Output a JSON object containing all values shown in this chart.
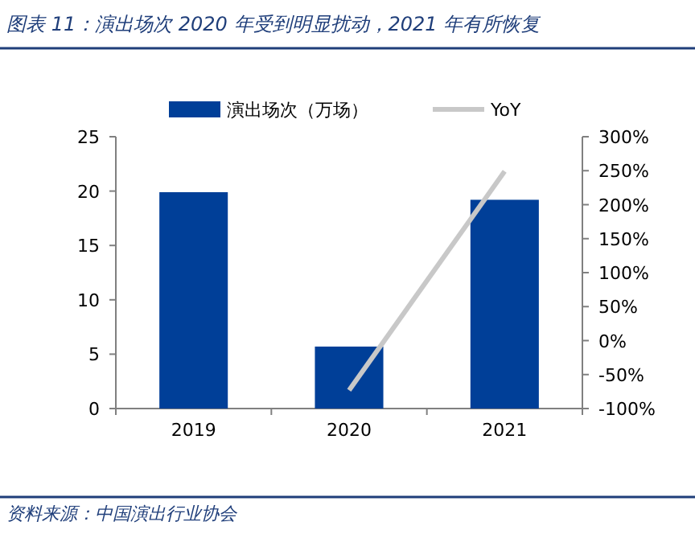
{
  "chart_data": {
    "type": "bar",
    "title": "图表 11：演出场次 2020 年受到明显扰动，2021 年有所恢复",
    "categories": [
      "2019",
      "2020",
      "2021"
    ],
    "series": [
      {
        "name": "演出场次（万场）",
        "color": "#003f98",
        "values": [
          19.9,
          5.7,
          19.2
        ]
      },
      {
        "name": "YoY",
        "type": "line",
        "axis": "y2",
        "color": "#c8c8c8",
        "values": [
          null,
          -73,
          249
        ]
      }
    ],
    "ylim": [
      0,
      25
    ],
    "yticks": [
      0,
      5,
      10,
      15,
      20,
      25
    ],
    "y2lim": [
      -100,
      300
    ],
    "y2ticks": [
      {
        "value": -100,
        "label": "-100%"
      },
      {
        "value": -50,
        "label": "-50%"
      },
      {
        "value": 0,
        "label": "0%"
      },
      {
        "value": 50,
        "label": "50%"
      },
      {
        "value": 100,
        "label": "100%"
      },
      {
        "value": 150,
        "label": "150%"
      },
      {
        "value": 200,
        "label": "200%"
      },
      {
        "value": 250,
        "label": "250%"
      },
      {
        "value": 300,
        "label": "300%"
      }
    ],
    "legend": "top",
    "annotations": [
      "资料来源：中国演出行业协会"
    ]
  }
}
